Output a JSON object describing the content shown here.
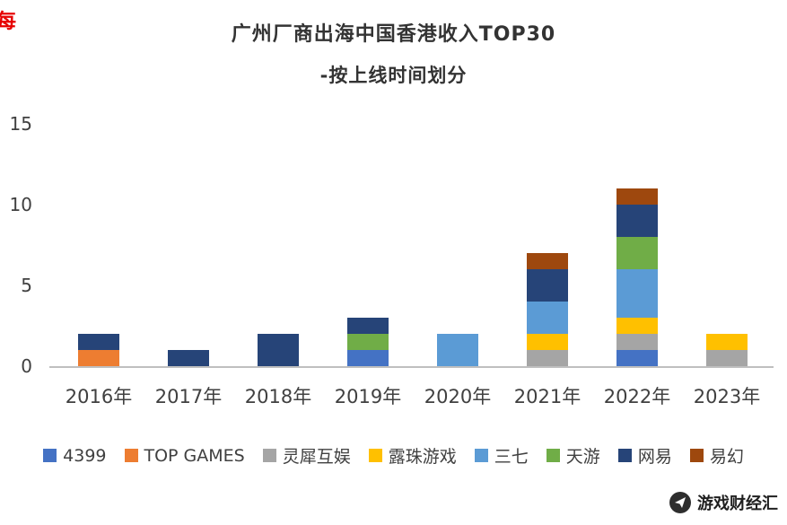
{
  "page": {
    "corner_mark": "每",
    "watermark_text": "游戏财经汇"
  },
  "chart_data": {
    "type": "bar",
    "stacked": true,
    "title": "广州厂商出海中国香港收入TOP30",
    "subtitle": "-按上线时间划分",
    "categories": [
      "2016年",
      "2017年",
      "2018年",
      "2019年",
      "2020年",
      "2021年",
      "2022年",
      "2023年"
    ],
    "series": [
      {
        "name": "4399",
        "color": "#4472C4",
        "values": [
          0,
          0,
          0,
          1,
          0,
          0,
          1,
          0
        ]
      },
      {
        "name": "TOP GAMES",
        "color": "#ED7D31",
        "values": [
          1,
          0,
          0,
          0,
          0,
          0,
          0,
          0
        ]
      },
      {
        "name": "灵犀互娱",
        "color": "#A5A5A5",
        "values": [
          0,
          0,
          0,
          0,
          0,
          1,
          1,
          1
        ]
      },
      {
        "name": "露珠游戏",
        "color": "#FFC000",
        "values": [
          0,
          0,
          0,
          0,
          0,
          1,
          1,
          1
        ]
      },
      {
        "name": "三七",
        "color": "#5B9BD5",
        "values": [
          0,
          0,
          0,
          0,
          2,
          2,
          3,
          0
        ]
      },
      {
        "name": "天游",
        "color": "#70AD47",
        "values": [
          0,
          0,
          0,
          1,
          0,
          0,
          2,
          0
        ]
      },
      {
        "name": "网易",
        "color": "#264478",
        "values": [
          1,
          1,
          2,
          1,
          0,
          2,
          2,
          0
        ]
      },
      {
        "name": "易幻",
        "color": "#9E480E",
        "values": [
          0,
          0,
          0,
          0,
          0,
          1,
          1,
          0
        ]
      }
    ],
    "totals": [
      2,
      1,
      2,
      3,
      2,
      7,
      11,
      2
    ],
    "ylim": [
      0,
      15
    ],
    "yticks": [
      0,
      5,
      10,
      15
    ],
    "grid": false,
    "legend_position": "bottom"
  },
  "colors": {
    "axis_text": "#404040",
    "axis_line": "#BFBFBF",
    "title_text": "#333333",
    "corner_mark": "#E60000",
    "watermark_text": "#1F1F1F"
  }
}
